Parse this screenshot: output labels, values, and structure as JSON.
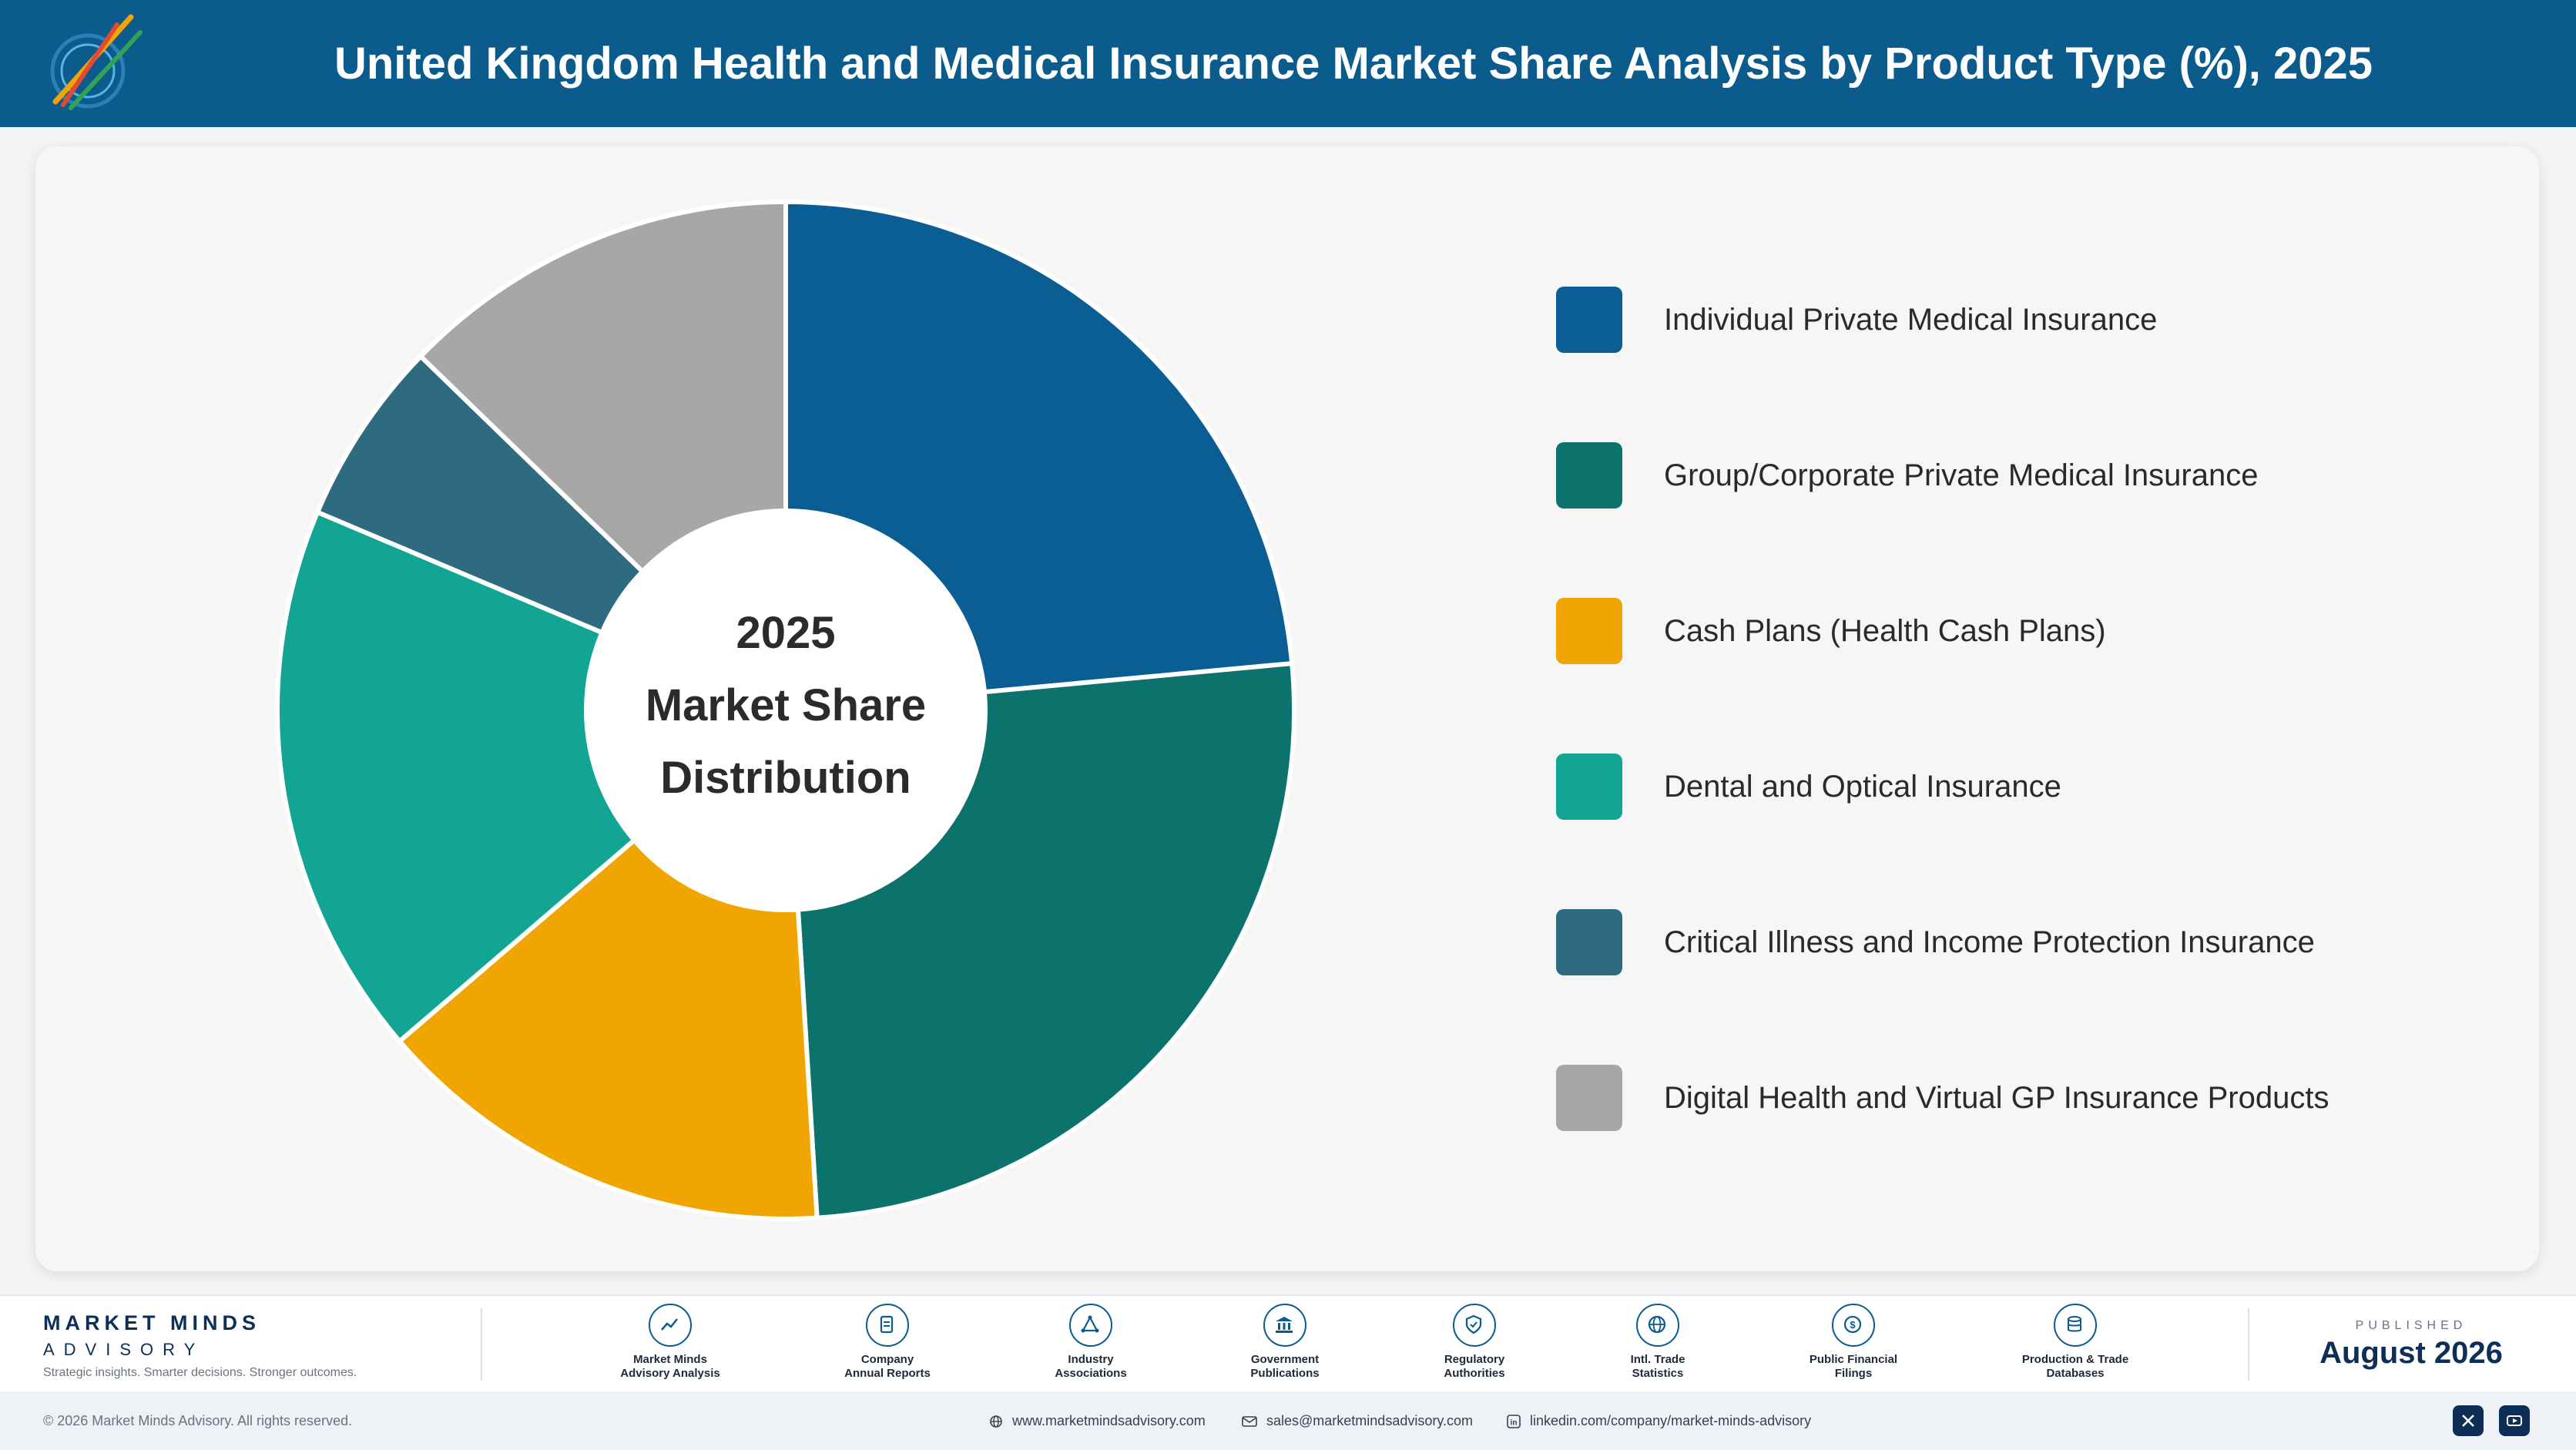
{
  "header": {
    "title": "United Kingdom Health and Medical Insurance Market Share Analysis by Product Type (%), 2025"
  },
  "center": {
    "line1": "2025",
    "line2": "Market Share",
    "line3": "Distribution"
  },
  "chart_data": {
    "type": "pie",
    "donut": true,
    "title": "United Kingdom Health and Medical Insurance Market Share Analysis by Product Type (%), 2025",
    "categories": [
      "Individual Private Medical Insurance",
      "Group/Corporate Private Medical Insurance",
      "Cash Plans (Health Cash Plans)",
      "Dental and Optical Insurance",
      "Critical Illness and Income Protection Insurance",
      "Digital Health and Virtual GP Insurance Products"
    ],
    "values": [
      24,
      26,
      15,
      18,
      6,
      13
    ],
    "colors": [
      "#0b5e94",
      "#0c726c",
      "#f0a500",
      "#12a593",
      "#2e6b80",
      "#a7a7a7"
    ],
    "legend_position": "right"
  },
  "footer": {
    "brand_name": "MARKET MINDS",
    "brand_sub": "ADVISORY",
    "tagline": "Strategic insights. Smarter decisions. Stronger outcomes.",
    "sources": [
      {
        "line1": "Market Minds",
        "line2": "Advisory Analysis",
        "icon": "chart-line-icon"
      },
      {
        "line1": "Company",
        "line2": "Annual Reports",
        "icon": "document-icon"
      },
      {
        "line1": "Industry",
        "line2": "Associations",
        "icon": "network-icon"
      },
      {
        "line1": "Government",
        "line2": "Publications",
        "icon": "building-icon"
      },
      {
        "line1": "Regulatory",
        "line2": "Authorities",
        "icon": "shield-icon"
      },
      {
        "line1": "Intl. Trade",
        "line2": "Statistics",
        "icon": "globe-icon"
      },
      {
        "line1": "Public Financial",
        "line2": "Filings",
        "icon": "coin-icon"
      },
      {
        "line1": "Production & Trade",
        "line2": "Databases",
        "icon": "database-icon"
      }
    ],
    "published_label": "PUBLISHED",
    "published_date": "August 2026"
  },
  "bottom": {
    "copyright": "© 2026 Market Minds Advisory. All rights reserved.",
    "website": "www.marketmindsadvisory.com",
    "email": "sales@marketmindsadvisory.com",
    "linkedin": "linkedin.com/company/market-minds-advisory"
  }
}
